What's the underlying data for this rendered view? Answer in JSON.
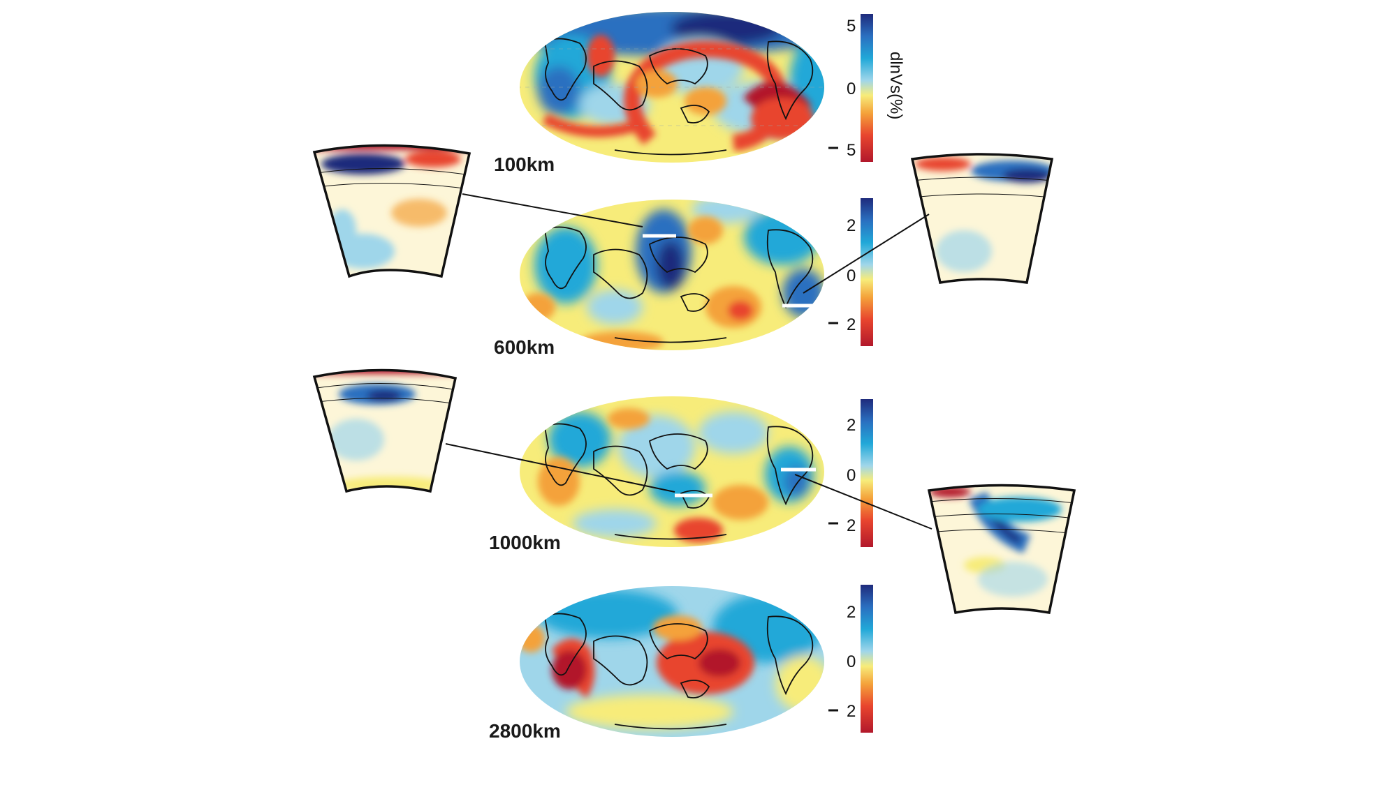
{
  "colors": {
    "deep_red": "#b2182b",
    "red": "#e8452e",
    "orange": "#f4a23a",
    "yellow": "#f7ec7a",
    "pale": "#fdf6d8",
    "light_blue": "#9fd6ea",
    "cyan": "#21a8d8",
    "blue": "#2a6fc0",
    "navy": "#1f2b7c",
    "coast": "#111111"
  },
  "maps": [
    {
      "depth_label": "100km",
      "scale": {
        "ticks": [
          "5",
          "0",
          "5"
        ],
        "minus_on_bottom": true,
        "unit": "dlnVs(%)"
      }
    },
    {
      "depth_label": "600km",
      "scale": {
        "ticks": [
          "2",
          "0",
          "2"
        ],
        "minus_on_bottom": true
      }
    },
    {
      "depth_label": "1000km",
      "scale": {
        "ticks": [
          "2",
          "0",
          "2"
        ],
        "minus_on_bottom": true
      }
    },
    {
      "depth_label": "2800km",
      "scale": {
        "ticks": [
          "2",
          "0",
          "2"
        ],
        "minus_on_bottom": true
      }
    }
  ],
  "cross_sections": [
    {
      "side": "left",
      "linked_map": "600km"
    },
    {
      "side": "right",
      "linked_map": "600km"
    },
    {
      "side": "left",
      "linked_map": "1000km"
    },
    {
      "side": "right",
      "linked_map": "1000km"
    }
  ]
}
